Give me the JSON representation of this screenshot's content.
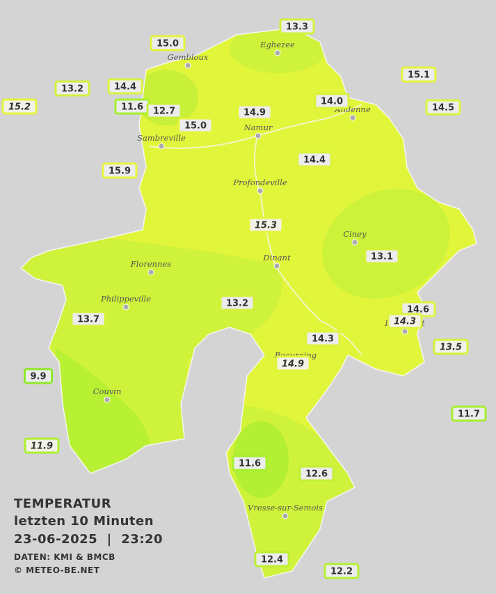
{
  "title": {
    "line1": "TEMPERATUR",
    "line2": "letzten 10 Minuten",
    "line3": "23-06-2025  |  23:20",
    "source": "DATEN: KMI & BMCB",
    "copyright": "© METEO-BE.NET"
  },
  "towns": [
    "Eghezee",
    "Gembloux",
    "Andenne",
    "Namur",
    "Sambreville",
    "Profondeville",
    "Ciney",
    "Dinant",
    "Florennes",
    "Philippeville",
    "Rochefort",
    "Beauraing",
    "Couvin",
    "Vresse-sur-Semois"
  ],
  "stations": [
    {
      "value": "13.3",
      "color": "#d2f23a"
    },
    {
      "value": "15.0",
      "color": "#e4f53c"
    },
    {
      "value": "15.1",
      "color": "#e4f53c"
    },
    {
      "value": "13.2",
      "color": "#d2f23a"
    },
    {
      "value": "14.4",
      "color": "#ddf33c"
    },
    {
      "value": "15.2",
      "color": "#e4f53c",
      "italic": true
    },
    {
      "value": "11.6",
      "color": "#a6ef2e"
    },
    {
      "value": "12.7",
      "color": "#c4f038"
    },
    {
      "value": "14.9",
      "color": "#e2f53c"
    },
    {
      "value": "14.0",
      "color": "#daf23c"
    },
    {
      "value": "14.5",
      "color": "#ddf33c"
    },
    {
      "value": "15.0",
      "color": "#e4f53c"
    },
    {
      "value": "15.9",
      "color": "#eaf63e"
    },
    {
      "value": "14.4",
      "color": "#ddf33c"
    },
    {
      "value": "15.3",
      "color": "#e4f53c",
      "italic": true
    },
    {
      "value": "13.1",
      "color": "#d2f23a"
    },
    {
      "value": "13.2",
      "color": "#d2f23a"
    },
    {
      "value": "13.7",
      "color": "#d6f23a"
    },
    {
      "value": "14.6",
      "color": "#ddf33c"
    },
    {
      "value": "14.3",
      "color": "#ddf33c",
      "italic": true
    },
    {
      "value": "14.3",
      "color": "#ddf33c"
    },
    {
      "value": "13.5",
      "color": "#d4f23a",
      "italic": true
    },
    {
      "value": "14.9",
      "color": "#e2f53c",
      "italic": true
    },
    {
      "value": "9.9",
      "color": "#8eea28"
    },
    {
      "value": "11.7",
      "color": "#a8ef2e"
    },
    {
      "value": "11.9",
      "color": "#aef030",
      "italic": true
    },
    {
      "value": "11.6",
      "color": "#a6ef2e"
    },
    {
      "value": "12.6",
      "color": "#c2f036"
    },
    {
      "value": "12.4",
      "color": "#bcf034"
    },
    {
      "value": "12.2",
      "color": "#b6f032"
    }
  ]
}
